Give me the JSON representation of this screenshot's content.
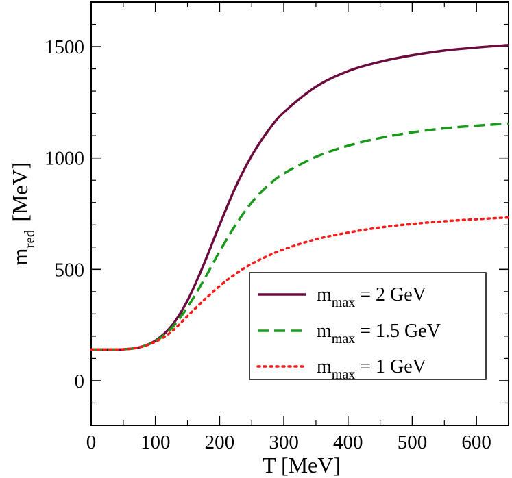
{
  "chart_data": {
    "type": "line",
    "xlabel": "T  [MeV]",
    "ylabel": {
      "main": "m",
      "sub": "red",
      "unit": "[MeV]"
    },
    "xlim": [
      0,
      650
    ],
    "ylim": [
      -200,
      1700
    ],
    "xticks": [
      0,
      100,
      200,
      300,
      400,
      500,
      600
    ],
    "yticks": [
      0,
      500,
      1000,
      1500
    ],
    "grid": false,
    "legend_position": "lower-right",
    "series": [
      {
        "name_main": "m",
        "name_sub": "max",
        "name_rest": " = 2 GeV",
        "color": "#6b0b3e",
        "style": "solid",
        "x": [
          0,
          25,
          50,
          75,
          100,
          125,
          150,
          175,
          200,
          225,
          250,
          275,
          300,
          350,
          400,
          450,
          500,
          550,
          600,
          650
        ],
        "y": [
          140,
          140,
          141,
          150,
          180,
          245,
          360,
          520,
          700,
          870,
          1010,
          1120,
          1205,
          1320,
          1390,
          1432,
          1461,
          1482,
          1496,
          1507
        ]
      },
      {
        "name_main": "m",
        "name_sub": "max",
        "name_rest": " = 1.5 GeV",
        "color": "#1a9a1a",
        "style": "dashed",
        "x": [
          0,
          25,
          50,
          75,
          100,
          125,
          150,
          175,
          200,
          225,
          250,
          275,
          300,
          350,
          400,
          450,
          500,
          550,
          600,
          650
        ],
        "y": [
          140,
          140,
          141,
          150,
          178,
          235,
          330,
          450,
          580,
          700,
          800,
          875,
          930,
          1005,
          1055,
          1090,
          1115,
          1133,
          1145,
          1155
        ]
      },
      {
        "name_main": "m",
        "name_sub": "max",
        "name_rest": " = 1 GeV",
        "color": "#ff1a1a",
        "style": "dotted",
        "x": [
          0,
          25,
          50,
          75,
          100,
          125,
          150,
          175,
          200,
          225,
          250,
          275,
          300,
          350,
          400,
          450,
          500,
          550,
          600,
          650
        ],
        "y": [
          140,
          140,
          141,
          150,
          175,
          220,
          290,
          360,
          425,
          480,
          525,
          560,
          590,
          635,
          665,
          688,
          704,
          716,
          725,
          733
        ]
      }
    ]
  }
}
